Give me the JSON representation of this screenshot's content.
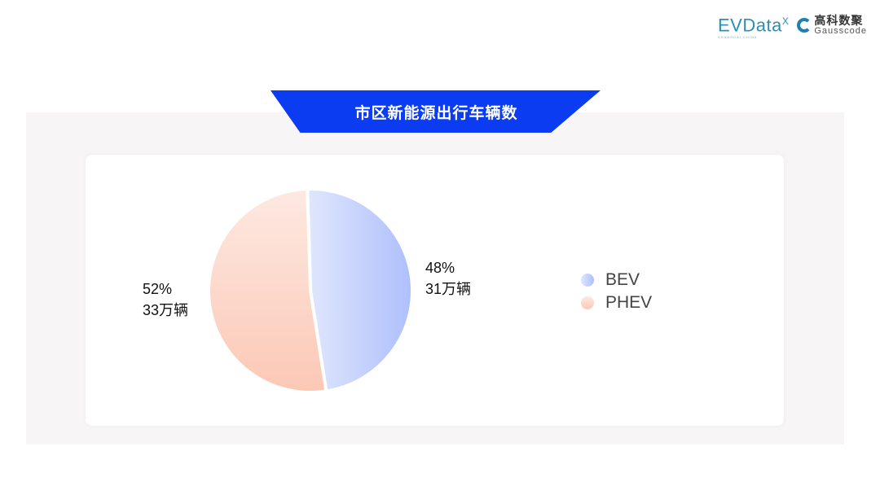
{
  "logos": {
    "evdata": "EVData",
    "evdata_sup": "X",
    "evdata_sub": "SHANGHAI CHINA",
    "gauss_cn": "高科数聚",
    "gauss_en": "Gausscode"
  },
  "title": "市区新能源出行车辆数",
  "chart_data": {
    "type": "pie",
    "title": "市区新能源出行车辆数",
    "categories": [
      "BEV",
      "PHEV"
    ],
    "values": [
      48,
      52
    ],
    "value_labels": [
      {
        "pct": "48%",
        "count": "31万辆"
      },
      {
        "pct": "52%",
        "count": "33万辆"
      }
    ],
    "colors": [
      [
        "#e0e7fd",
        "#aebffc"
      ],
      [
        "#fde9e2",
        "#fcc8b5"
      ]
    ],
    "legend": "right",
    "start": "top, clockwise"
  }
}
